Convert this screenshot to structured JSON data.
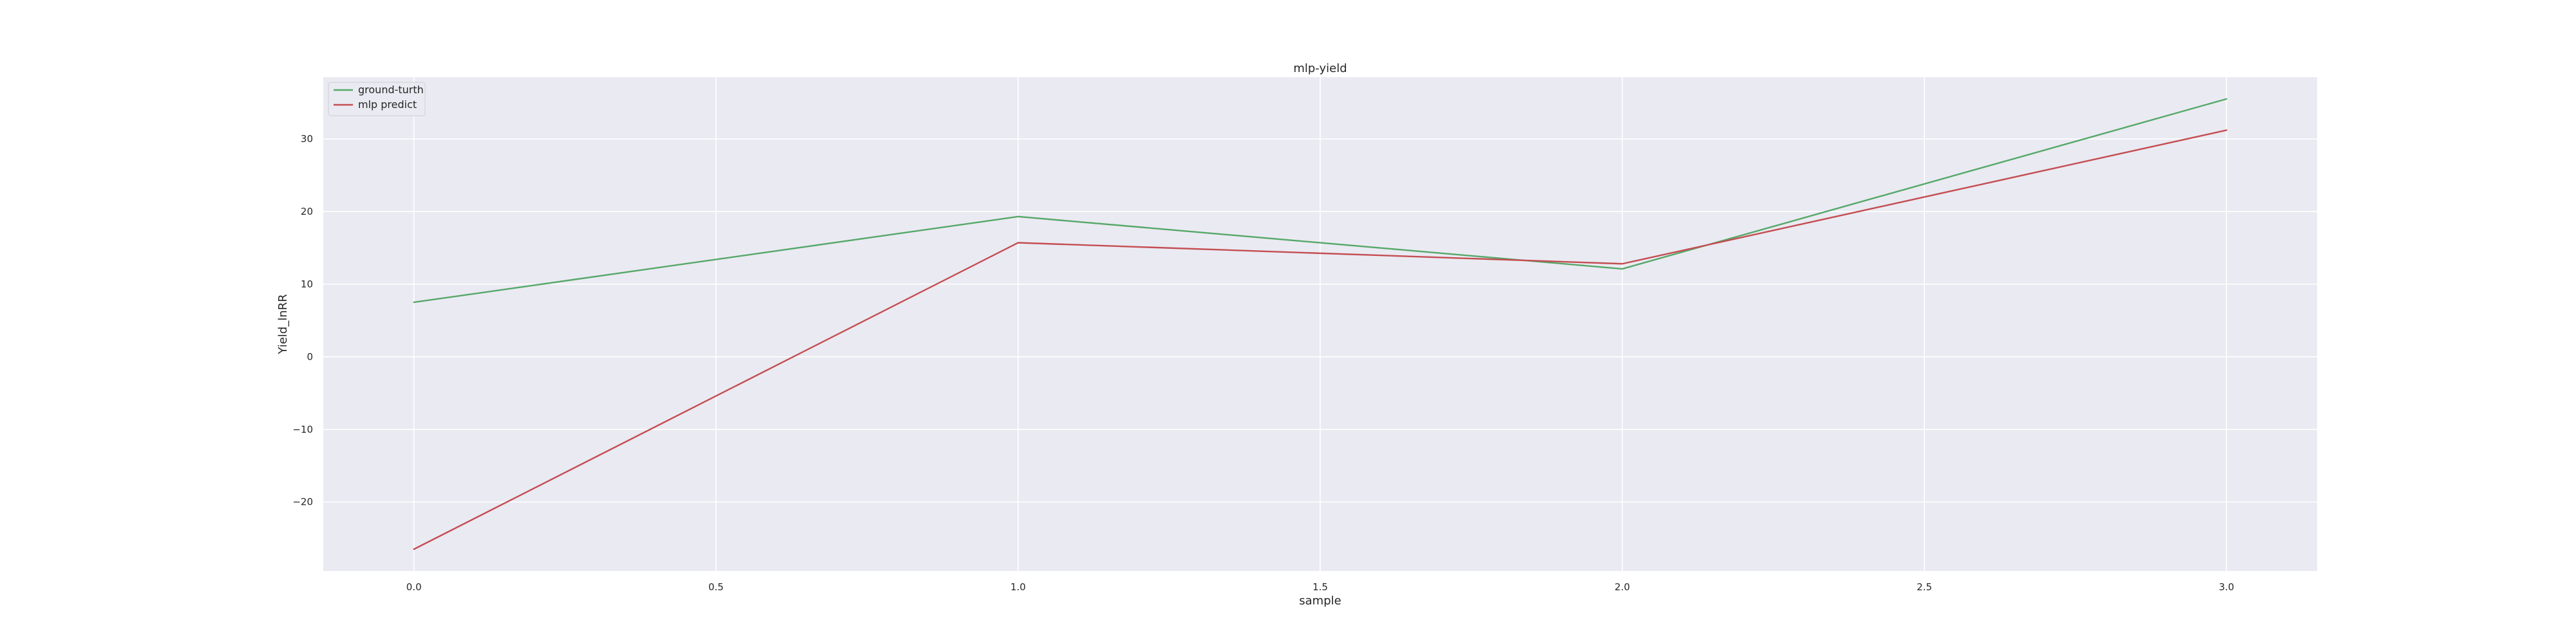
{
  "chart_data": {
    "type": "line",
    "title": "mlp-yield",
    "xlabel": "sample",
    "ylabel": "Yield_lnRR",
    "xlim": [
      -0.15,
      3.15
    ],
    "ylim": [
      -29.5,
      38.5
    ],
    "xticks": [
      0.0,
      0.5,
      1.0,
      1.5,
      2.0,
      2.5,
      3.0
    ],
    "xtick_labels": [
      "0.0",
      "0.5",
      "1.0",
      "1.5",
      "2.0",
      "2.5",
      "3.0"
    ],
    "yticks": [
      -20,
      -10,
      0,
      10,
      20,
      30
    ],
    "ytick_labels": [
      "−20",
      "−10",
      "0",
      "10",
      "20",
      "30"
    ],
    "grid": true,
    "legend_position": "top-left",
    "x": [
      0,
      1,
      2,
      3
    ],
    "series": [
      {
        "name": "ground-turth",
        "color": "#55a868",
        "values": [
          7.5,
          19.3,
          12.1,
          35.5
        ]
      },
      {
        "name": "mlp predict",
        "color": "#c44e52",
        "values": [
          -26.5,
          15.7,
          12.8,
          31.2
        ]
      }
    ]
  }
}
